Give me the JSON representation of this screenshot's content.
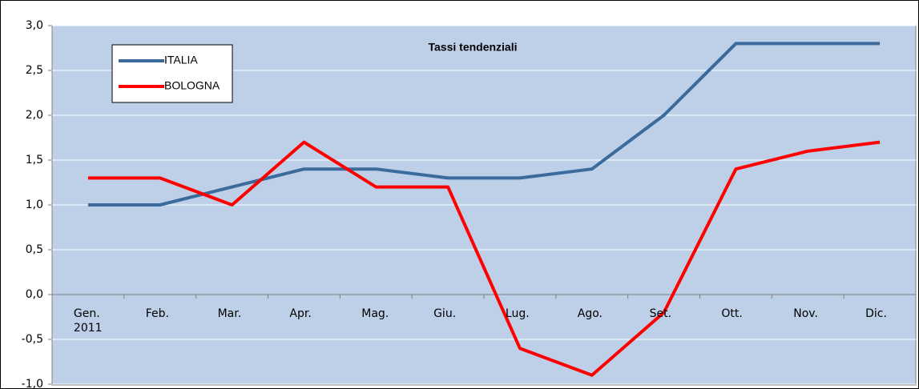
{
  "chart_data": {
    "type": "line",
    "title": "Tassi tendenziali",
    "categories": [
      "Gen. 2011",
      "Feb.",
      "Mar.",
      "Apr.",
      "Mag.",
      "Giu.",
      "Lug.",
      "Ago.",
      "Set.",
      "Ott.",
      "Nov.",
      "Dic."
    ],
    "series": [
      {
        "name": "ITALIA",
        "color": "#3b6a9c",
        "values": [
          1.0,
          1.0,
          1.2,
          1.4,
          1.4,
          1.3,
          1.3,
          1.4,
          2.0,
          2.8,
          2.8,
          2.8
        ]
      },
      {
        "name": "BOLOGNA",
        "color": "#ff0000",
        "values": [
          1.3,
          1.3,
          1.0,
          1.7,
          1.2,
          1.2,
          -0.6,
          -0.9,
          -0.2,
          1.4,
          1.6,
          1.7
        ]
      }
    ],
    "ylim": [
      -1.0,
      3.0
    ],
    "yticks": [
      {
        "value": -1.0,
        "label": "-1,0"
      },
      {
        "value": -0.5,
        "label": "-0,5"
      },
      {
        "value": 0,
        "label": "0,0"
      },
      {
        "value": 0.5,
        "label": "0,5"
      },
      {
        "value": 1.0,
        "label": "1,0"
      },
      {
        "value": 1.5,
        "label": "1,5"
      },
      {
        "value": 2.0,
        "label": "2,0"
      },
      {
        "value": 2.5,
        "label": "2,5"
      },
      {
        "value": 3.0,
        "label": "3,0"
      }
    ],
    "grid": true
  }
}
